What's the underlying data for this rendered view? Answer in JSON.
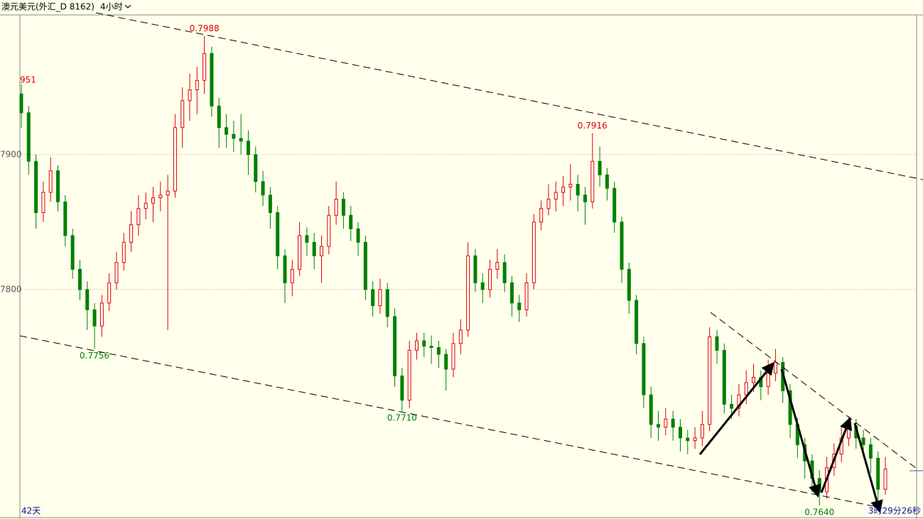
{
  "header": {
    "symbol": "澳元美元(外汇_D 8162)",
    "period": "4小时"
  },
  "chart_data": {
    "type": "candlestick",
    "up_color": "#e00000",
    "down_color": "#008000",
    "grid": true,
    "ylim": [
      0.7631,
      0.8003
    ],
    "yticks": [
      {
        "value": 0.79,
        "label": "7900"
      },
      {
        "value": 0.78,
        "label": "7800"
      }
    ],
    "side_label": "951",
    "annotations": [
      {
        "value": 0.7988,
        "label": "0.7988",
        "kind": "high",
        "color": "#e00000"
      },
      {
        "value": 0.7916,
        "label": "0.7916",
        "kind": "high",
        "color": "#e00000"
      },
      {
        "value": 0.7756,
        "label": "0.7756",
        "kind": "low",
        "color": "#008000"
      },
      {
        "value": 0.771,
        "label": "0.7710",
        "kind": "low",
        "color": "#008000"
      },
      {
        "value": 0.764,
        "label": "0.7640",
        "kind": "low",
        "color": "#008000"
      }
    ],
    "footer_left": "42天",
    "footer_right": "3时29分26秒",
    "ohlc": [
      [
        0.7945,
        0.7952,
        0.792,
        0.7931
      ],
      [
        0.7931,
        0.7936,
        0.7885,
        0.7895
      ],
      [
        0.7895,
        0.79,
        0.7845,
        0.7857
      ],
      [
        0.7857,
        0.788,
        0.785,
        0.7872
      ],
      [
        0.7872,
        0.7898,
        0.7865,
        0.7888
      ],
      [
        0.7888,
        0.7892,
        0.7858,
        0.7865
      ],
      [
        0.7865,
        0.787,
        0.7832,
        0.784
      ],
      [
        0.784,
        0.7845,
        0.7808,
        0.7815
      ],
      [
        0.7815,
        0.7822,
        0.7792,
        0.78
      ],
      [
        0.78,
        0.7806,
        0.777,
        0.7785
      ],
      [
        0.7785,
        0.779,
        0.7756,
        0.7773
      ],
      [
        0.7773,
        0.7796,
        0.7765,
        0.779
      ],
      [
        0.779,
        0.7812,
        0.7784,
        0.7805
      ],
      [
        0.7805,
        0.7828,
        0.78,
        0.782
      ],
      [
        0.782,
        0.7842,
        0.7814,
        0.7835
      ],
      [
        0.7835,
        0.7858,
        0.7828,
        0.7848
      ],
      [
        0.7848,
        0.787,
        0.784,
        0.786
      ],
      [
        0.786,
        0.7872,
        0.7852,
        0.7864
      ],
      [
        0.7864,
        0.7876,
        0.785,
        0.7868
      ],
      [
        0.7868,
        0.788,
        0.7858,
        0.787
      ],
      [
        0.787,
        0.7885,
        0.777,
        0.7873
      ],
      [
        0.7873,
        0.793,
        0.7868,
        0.792
      ],
      [
        0.792,
        0.795,
        0.7905,
        0.794
      ],
      [
        0.794,
        0.796,
        0.7925,
        0.7948
      ],
      [
        0.7948,
        0.7965,
        0.793,
        0.7955
      ],
      [
        0.7955,
        0.7988,
        0.7945,
        0.7975
      ],
      [
        0.7975,
        0.798,
        0.7928,
        0.7936
      ],
      [
        0.7936,
        0.7942,
        0.7905,
        0.792
      ],
      [
        0.792,
        0.793,
        0.7905,
        0.7915
      ],
      [
        0.7915,
        0.7925,
        0.7902,
        0.7912
      ],
      [
        0.7912,
        0.793,
        0.79,
        0.791
      ],
      [
        0.791,
        0.7918,
        0.7885,
        0.79
      ],
      [
        0.79,
        0.7906,
        0.7872,
        0.788
      ],
      [
        0.788,
        0.7888,
        0.7862,
        0.787
      ],
      [
        0.787,
        0.7876,
        0.7845,
        0.7857
      ],
      [
        0.7857,
        0.7862,
        0.7815,
        0.7825
      ],
      [
        0.7825,
        0.783,
        0.779,
        0.7805
      ],
      [
        0.7805,
        0.7822,
        0.7795,
        0.7815
      ],
      [
        0.7815,
        0.785,
        0.781,
        0.784
      ],
      [
        0.784,
        0.7846,
        0.7825,
        0.7835
      ],
      [
        0.7835,
        0.7842,
        0.7815,
        0.7825
      ],
      [
        0.7825,
        0.784,
        0.7805,
        0.7832
      ],
      [
        0.7832,
        0.7862,
        0.7826,
        0.7855
      ],
      [
        0.7855,
        0.788,
        0.7848,
        0.7867
      ],
      [
        0.7867,
        0.7872,
        0.7845,
        0.7855
      ],
      [
        0.7855,
        0.7862,
        0.7836,
        0.7845
      ],
      [
        0.7845,
        0.785,
        0.7825,
        0.7835
      ],
      [
        0.7835,
        0.784,
        0.7792,
        0.78
      ],
      [
        0.78,
        0.7806,
        0.778,
        0.7788
      ],
      [
        0.7788,
        0.7808,
        0.7782,
        0.78
      ],
      [
        0.78,
        0.7805,
        0.7772,
        0.778
      ],
      [
        0.778,
        0.7786,
        0.7728,
        0.7736
      ],
      [
        0.7736,
        0.7742,
        0.771,
        0.7718
      ],
      [
        0.7718,
        0.7762,
        0.7712,
        0.7755
      ],
      [
        0.7755,
        0.7768,
        0.7748,
        0.7762
      ],
      [
        0.7762,
        0.7768,
        0.775,
        0.7758
      ],
      [
        0.7758,
        0.7766,
        0.7745,
        0.7757
      ],
      [
        0.7757,
        0.7762,
        0.7742,
        0.7752
      ],
      [
        0.7752,
        0.7756,
        0.7725,
        0.7741
      ],
      [
        0.7741,
        0.7768,
        0.7735,
        0.776
      ],
      [
        0.776,
        0.7778,
        0.7752,
        0.777
      ],
      [
        0.777,
        0.7835,
        0.7765,
        0.7825
      ],
      [
        0.7825,
        0.783,
        0.7798,
        0.7805
      ],
      [
        0.7805,
        0.7812,
        0.779,
        0.78
      ],
      [
        0.78,
        0.7822,
        0.7794,
        0.7815
      ],
      [
        0.7815,
        0.783,
        0.7808,
        0.782
      ],
      [
        0.782,
        0.7826,
        0.7798,
        0.7805
      ],
      [
        0.7805,
        0.781,
        0.778,
        0.779
      ],
      [
        0.779,
        0.7796,
        0.7776,
        0.7785
      ],
      [
        0.7785,
        0.7812,
        0.778,
        0.7805
      ],
      [
        0.7805,
        0.7856,
        0.78,
        0.785
      ],
      [
        0.785,
        0.7866,
        0.7844,
        0.786
      ],
      [
        0.786,
        0.7878,
        0.7855,
        0.7867
      ],
      [
        0.7867,
        0.788,
        0.7858,
        0.7872
      ],
      [
        0.7872,
        0.7884,
        0.7862,
        0.7876
      ],
      [
        0.7876,
        0.7893,
        0.7866,
        0.7878
      ],
      [
        0.7878,
        0.7885,
        0.7858,
        0.787
      ],
      [
        0.787,
        0.7876,
        0.7848,
        0.7865
      ],
      [
        0.7865,
        0.7916,
        0.786,
        0.7895
      ],
      [
        0.7895,
        0.7906,
        0.7876,
        0.7885
      ],
      [
        0.7885,
        0.789,
        0.7866,
        0.7875
      ],
      [
        0.7875,
        0.788,
        0.7842,
        0.785
      ],
      [
        0.785,
        0.7854,
        0.7805,
        0.7815
      ],
      [
        0.7815,
        0.782,
        0.7782,
        0.7792
      ],
      [
        0.7792,
        0.7796,
        0.7752,
        0.776
      ],
      [
        0.776,
        0.7765,
        0.7712,
        0.7722
      ],
      [
        0.7722,
        0.7728,
        0.769,
        0.77
      ],
      [
        0.77,
        0.771,
        0.7688,
        0.7698
      ],
      [
        0.7698,
        0.7712,
        0.7692,
        0.7704
      ],
      [
        0.7704,
        0.771,
        0.7688,
        0.7698
      ],
      [
        0.7698,
        0.7704,
        0.768,
        0.769
      ],
      [
        0.769,
        0.7696,
        0.7678,
        0.7688
      ],
      [
        0.7688,
        0.7698,
        0.7682,
        0.769
      ],
      [
        0.769,
        0.771,
        0.7684,
        0.77
      ],
      [
        0.77,
        0.7772,
        0.7695,
        0.7765
      ],
      [
        0.7765,
        0.777,
        0.7745,
        0.7755
      ],
      [
        0.7755,
        0.776,
        0.7708,
        0.7715
      ],
      [
        0.7715,
        0.7722,
        0.7704,
        0.7712
      ],
      [
        0.7712,
        0.773,
        0.7706,
        0.7722
      ],
      [
        0.7722,
        0.774,
        0.7715,
        0.7731
      ],
      [
        0.7731,
        0.7745,
        0.7724,
        0.7735
      ],
      [
        0.7735,
        0.774,
        0.7718,
        0.7728
      ],
      [
        0.7728,
        0.7748,
        0.7722,
        0.7738
      ],
      [
        0.7738,
        0.7756,
        0.7732,
        0.7746
      ],
      [
        0.7746,
        0.775,
        0.7716,
        0.7725
      ],
      [
        0.7725,
        0.773,
        0.769,
        0.77
      ],
      [
        0.77,
        0.7705,
        0.7675,
        0.7685
      ],
      [
        0.7685,
        0.769,
        0.766,
        0.7673
      ],
      [
        0.7673,
        0.7678,
        0.765,
        0.766
      ],
      [
        0.766,
        0.7666,
        0.764,
        0.765
      ],
      [
        0.765,
        0.7676,
        0.7645,
        0.7668
      ],
      [
        0.7668,
        0.7686,
        0.7662,
        0.7678
      ],
      [
        0.7678,
        0.7698,
        0.7672,
        0.769
      ],
      [
        0.769,
        0.7706,
        0.7684,
        0.7699
      ],
      [
        0.7699,
        0.7704,
        0.7682,
        0.769
      ],
      [
        0.769,
        0.7696,
        0.7676,
        0.7685
      ],
      [
        0.7685,
        0.769,
        0.7664,
        0.7675
      ],
      [
        0.7675,
        0.768,
        0.7644,
        0.7652
      ],
      [
        0.7652,
        0.7676,
        0.7648,
        0.7667
      ]
    ]
  }
}
